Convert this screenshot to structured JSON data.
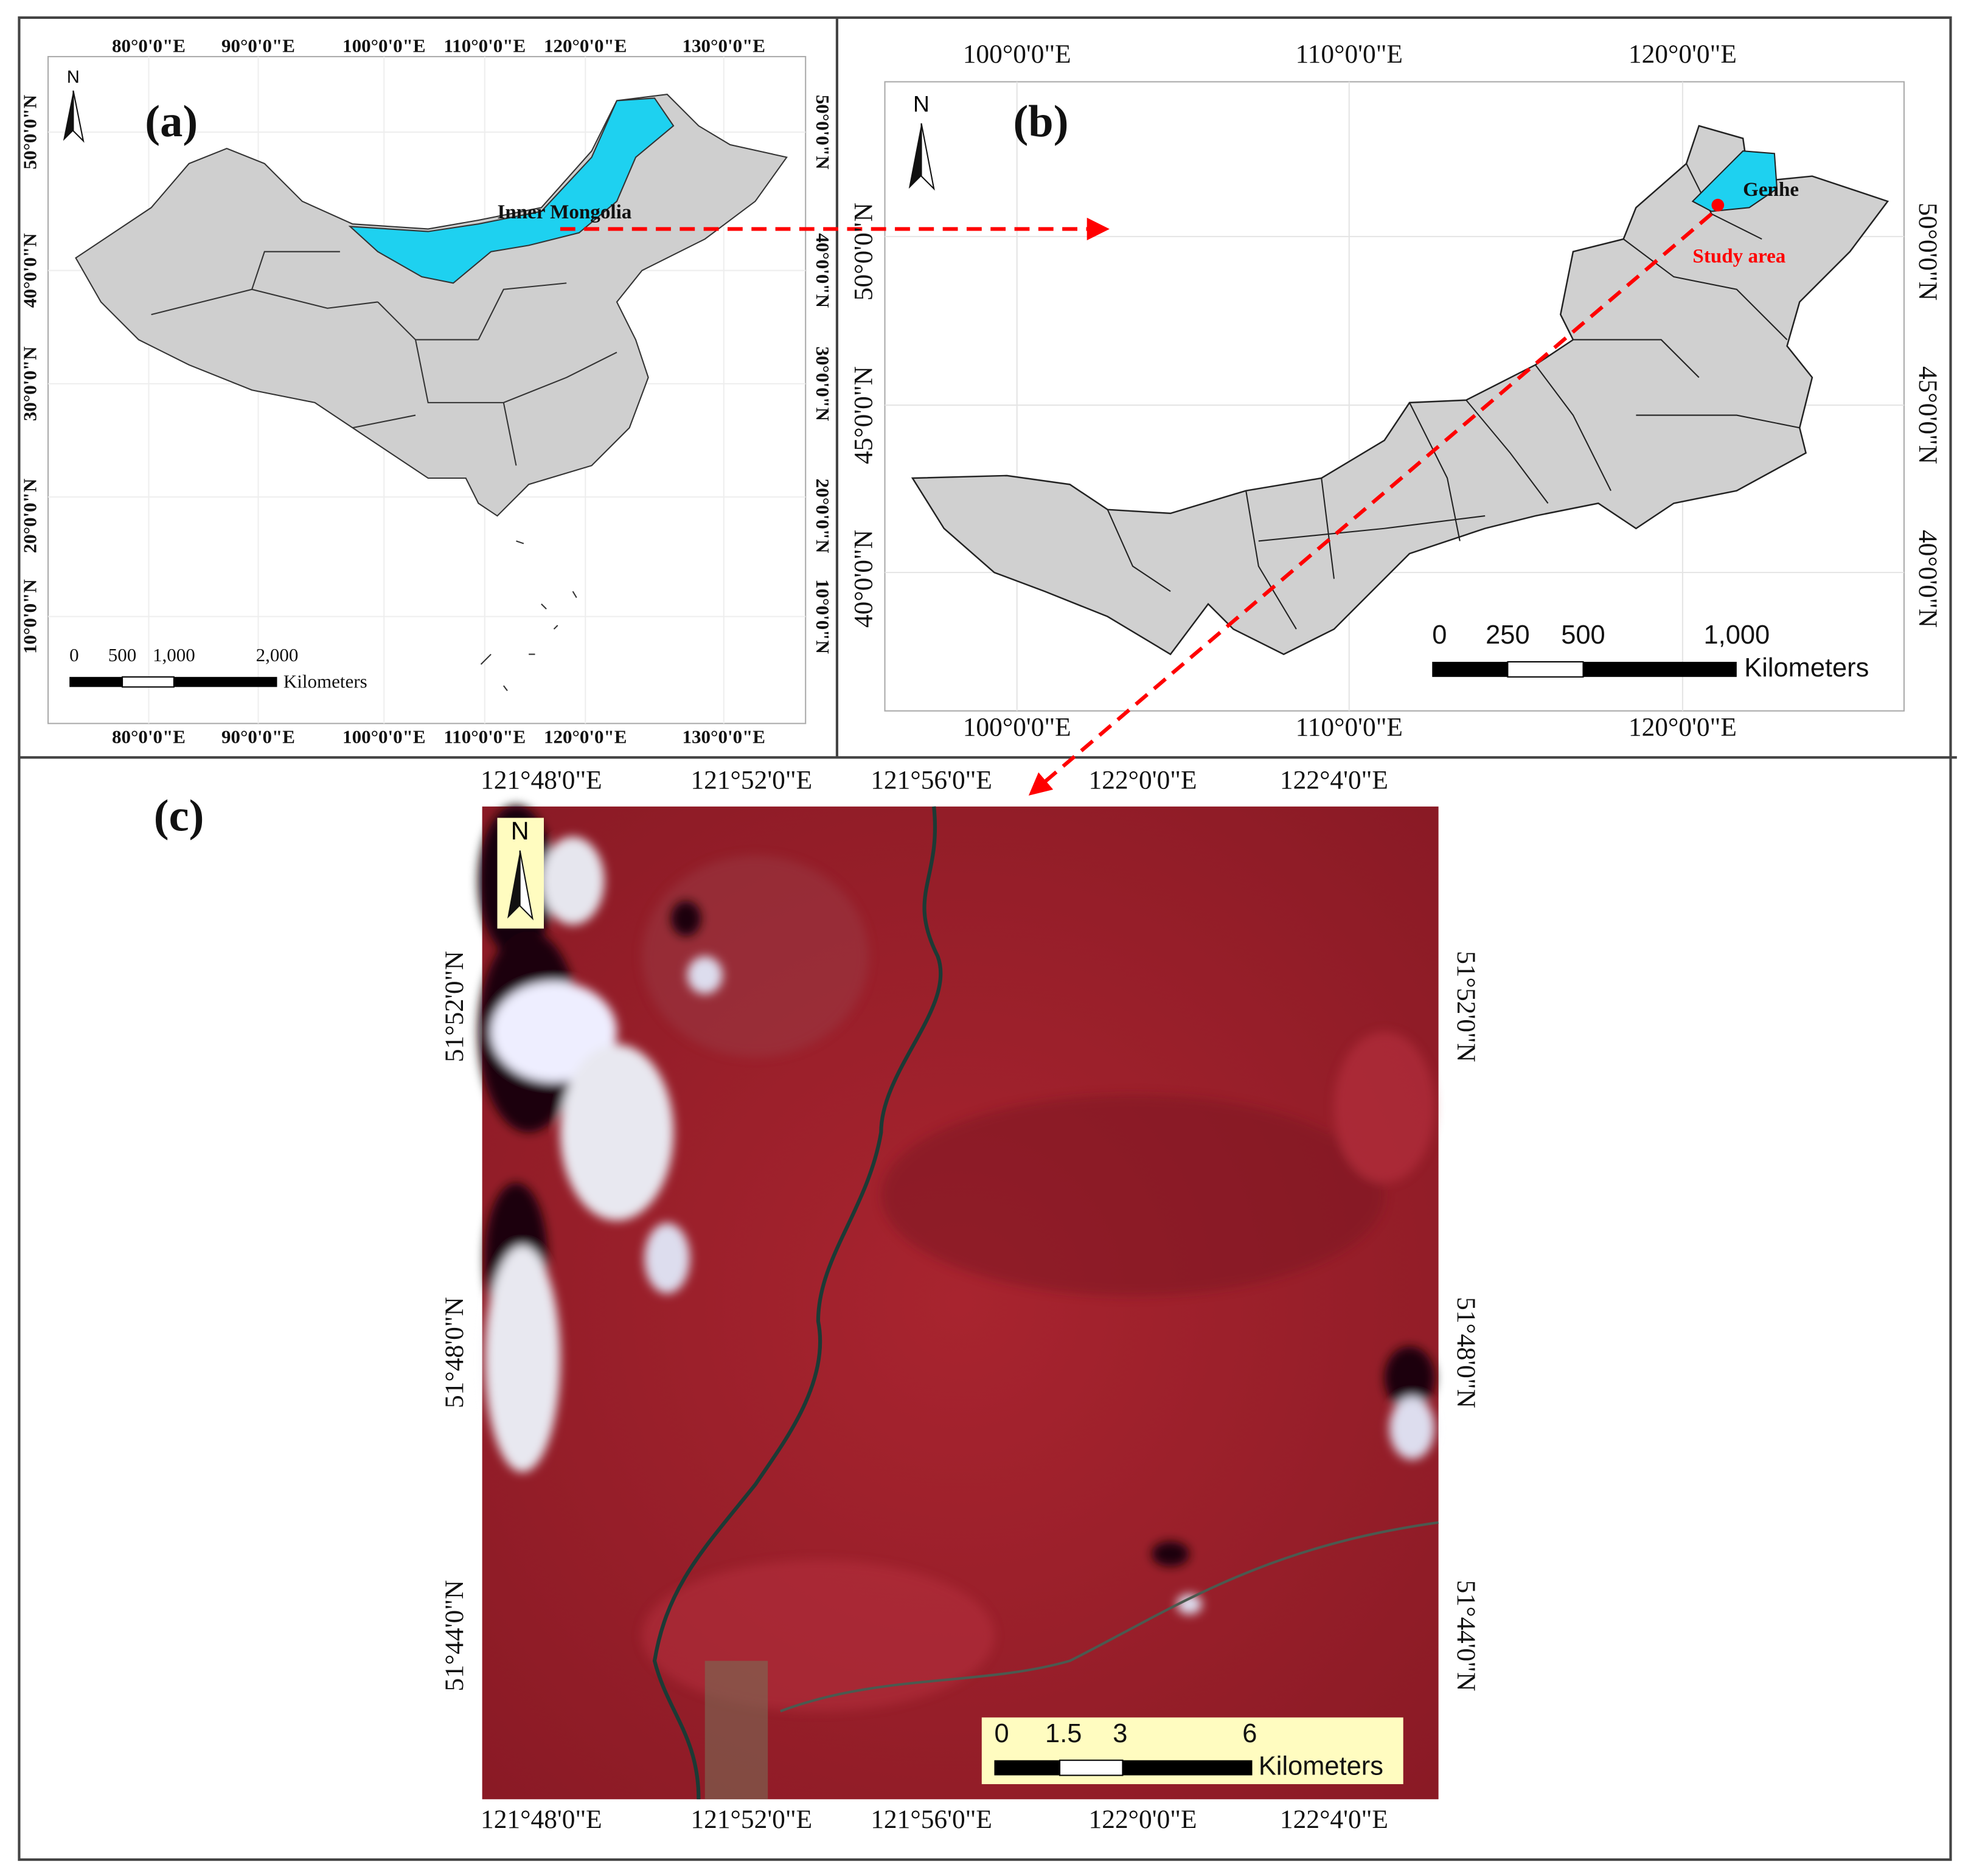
{
  "panel_a": {
    "label": "(a)",
    "north": "N",
    "lon_ticks": [
      "80°0'0\"E",
      "90°0'0\"E",
      "100°0'0\"E",
      "110°0'0\"E",
      "120°0'0\"E",
      "130°0'0\"E"
    ],
    "lat_ticks": [
      "50°0'0\"N",
      "40°0'0\"N",
      "30°0'0\"N",
      "20°0'0\"N",
      "10°0'0\"N"
    ],
    "region_label": "Inner Mongolia",
    "scale": {
      "labels": [
        "0",
        "500",
        "1,000",
        "2,000"
      ],
      "unit": "Kilometers"
    }
  },
  "panel_b": {
    "label": "(b)",
    "north": "N",
    "lon_ticks": [
      "100°0'0\"E",
      "110°0'0\"E",
      "120°0'0\"E"
    ],
    "lat_ticks": [
      "50°0'0\"N",
      "45°0'0\"N",
      "40°0'0\"N"
    ],
    "place_label": "Genhe",
    "study_label": "Study area",
    "scale": {
      "labels": [
        "0",
        "250",
        "500",
        "1,000"
      ],
      "unit": "Kilometers"
    }
  },
  "panel_c": {
    "label": "(c)",
    "north": "N",
    "lon_ticks": [
      "121°48'0\"E",
      "121°52'0\"E",
      "121°56'0\"E",
      "122°0'0\"E",
      "122°4'0\"E"
    ],
    "lat_ticks": [
      "51°52'0\"N",
      "51°48'0\"N",
      "51°44'0\"N"
    ],
    "scale": {
      "labels": [
        "0",
        "1.5",
        "3",
        "6"
      ],
      "unit": "Kilometers"
    }
  }
}
